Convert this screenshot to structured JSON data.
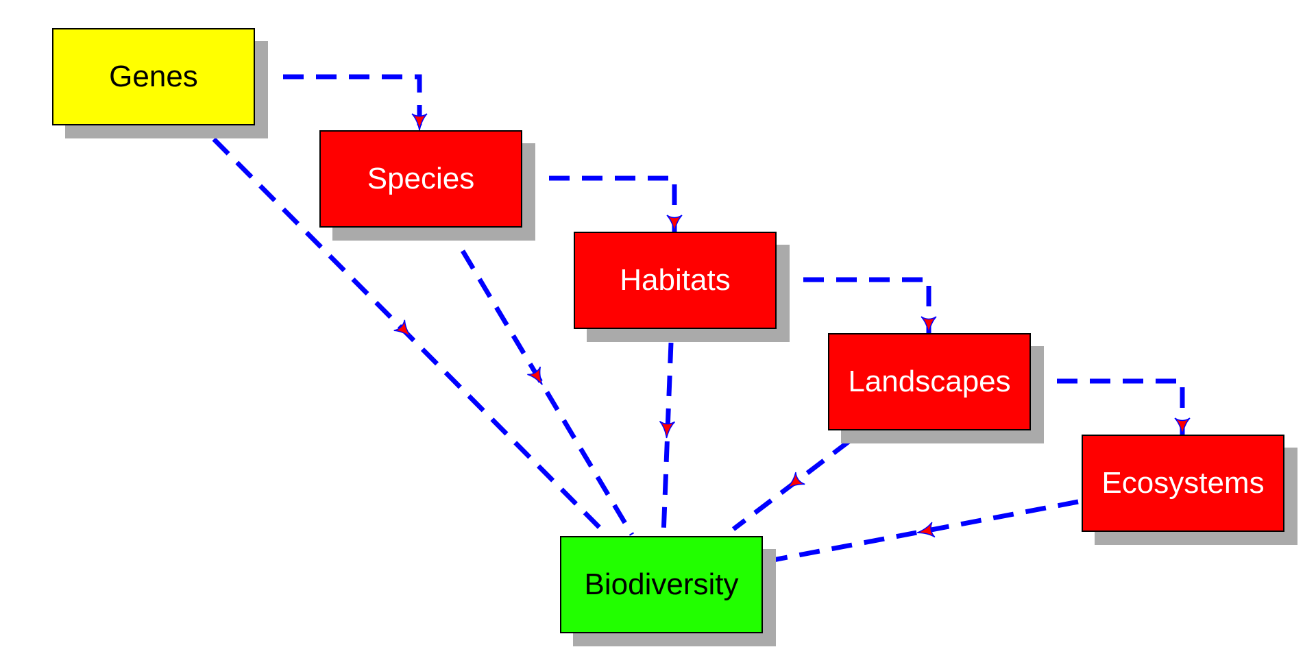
{
  "colors": {
    "edge": "#0000ff",
    "arrowhead_fill": "#ff0000",
    "shadow": "#aaaaaa"
  },
  "nodes": [
    {
      "id": "genes",
      "label": "Genes",
      "fill": "#ffff00",
      "text_color": "#000000"
    },
    {
      "id": "species",
      "label": "Species",
      "fill": "#ff0000",
      "text_color": "#ffffff"
    },
    {
      "id": "habitats",
      "label": "Habitats",
      "fill": "#ff0000",
      "text_color": "#ffffff"
    },
    {
      "id": "landscapes",
      "label": "Landscapes",
      "fill": "#ff0000",
      "text_color": "#ffffff"
    },
    {
      "id": "ecosystems",
      "label": "Ecosystems",
      "fill": "#ff0000",
      "text_color": "#ffffff"
    },
    {
      "id": "biodiversity",
      "label": "Biodiversity",
      "fill": "#22ff00",
      "text_color": "#000000"
    }
  ],
  "edges": [
    {
      "from": "genes",
      "to": "species"
    },
    {
      "from": "species",
      "to": "habitats"
    },
    {
      "from": "habitats",
      "to": "landscapes"
    },
    {
      "from": "landscapes",
      "to": "ecosystems"
    },
    {
      "from": "genes",
      "to": "biodiversity"
    },
    {
      "from": "species",
      "to": "biodiversity"
    },
    {
      "from": "habitats",
      "to": "biodiversity"
    },
    {
      "from": "landscapes",
      "to": "biodiversity"
    },
    {
      "from": "ecosystems",
      "to": "biodiversity"
    }
  ]
}
